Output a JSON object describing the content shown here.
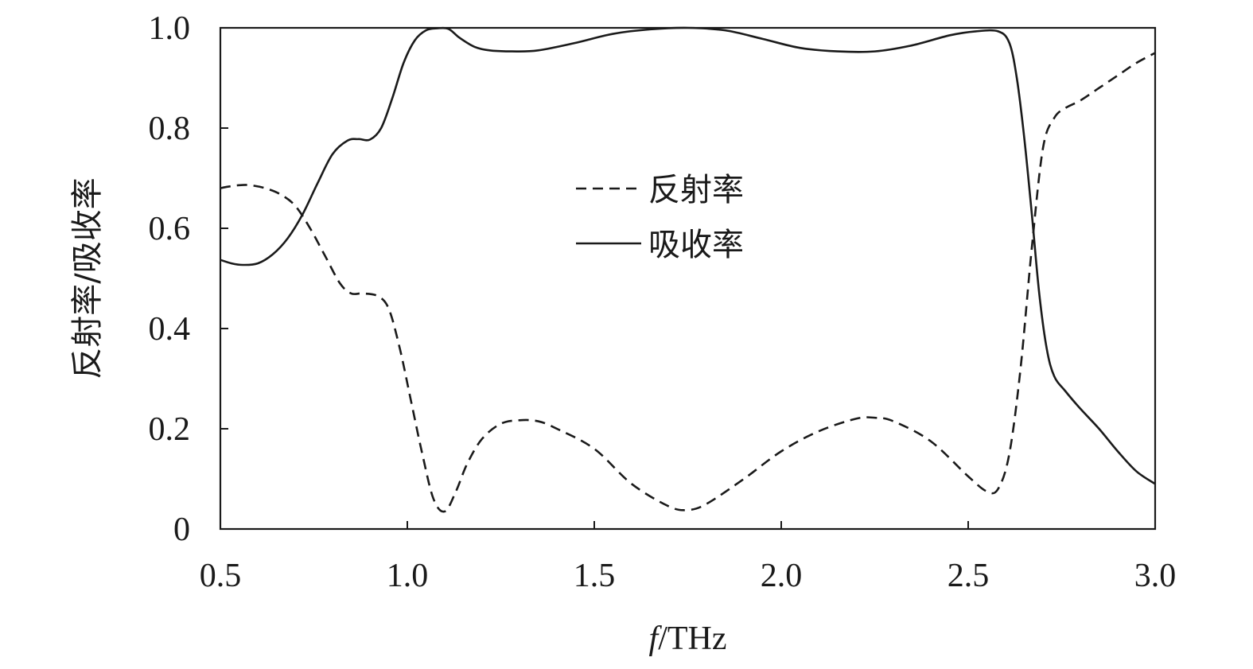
{
  "chart_data": {
    "type": "line",
    "title": "",
    "xlabel": "f/THz",
    "xlabel_italic_part": "f",
    "xlabel_rest": "/THz",
    "ylabel": "反射率/吸收率",
    "xlim": [
      0.5,
      3.0
    ],
    "ylim": [
      0,
      1.0
    ],
    "x_ticks": [
      0.5,
      1.0,
      1.5,
      2.0,
      2.5,
      3.0
    ],
    "x_tick_labels": [
      "0.5",
      "1.0",
      "1.5",
      "2.0",
      "2.5",
      "3.0"
    ],
    "y_ticks": [
      0,
      0.2,
      0.4,
      0.6,
      0.8,
      1.0
    ],
    "y_tick_labels": [
      "0",
      "0.2",
      "0.4",
      "0.6",
      "0.8",
      "1.0"
    ],
    "grid": false,
    "legend_position": "center",
    "series": [
      {
        "name": "反射率",
        "style": "dashed",
        "color": "#1a1a1a",
        "x": [
          0.5,
          0.52,
          0.55,
          0.58,
          0.62,
          0.66,
          0.7,
          0.74,
          0.78,
          0.82,
          0.85,
          0.88,
          0.92,
          0.95,
          0.98,
          1.01,
          1.04,
          1.07,
          1.1,
          1.13,
          1.16,
          1.2,
          1.25,
          1.3,
          1.35,
          1.4,
          1.5,
          1.6,
          1.7,
          1.75,
          1.8,
          1.9,
          2.0,
          2.1,
          2.2,
          2.25,
          2.3,
          2.4,
          2.5,
          2.55,
          2.58,
          2.61,
          2.64,
          2.67,
          2.7,
          2.73,
          2.76,
          2.8,
          2.85,
          2.9,
          2.95,
          3.0
        ],
        "y": [
          0.68,
          0.683,
          0.686,
          0.686,
          0.68,
          0.668,
          0.645,
          0.6,
          0.545,
          0.49,
          0.47,
          0.47,
          0.465,
          0.44,
          0.36,
          0.255,
          0.15,
          0.06,
          0.035,
          0.075,
          0.13,
          0.18,
          0.21,
          0.217,
          0.215,
          0.2,
          0.16,
          0.09,
          0.045,
          0.038,
          0.05,
          0.1,
          0.155,
          0.195,
          0.22,
          0.222,
          0.215,
          0.175,
          0.105,
          0.075,
          0.08,
          0.15,
          0.32,
          0.56,
          0.76,
          0.82,
          0.84,
          0.855,
          0.88,
          0.905,
          0.93,
          0.95
        ]
      },
      {
        "name": "吸收率",
        "style": "solid",
        "color": "#1a1a1a",
        "x": [
          0.5,
          0.53,
          0.56,
          0.6,
          0.64,
          0.68,
          0.72,
          0.76,
          0.8,
          0.84,
          0.87,
          0.9,
          0.93,
          0.96,
          0.99,
          1.02,
          1.05,
          1.08,
          1.11,
          1.14,
          1.18,
          1.22,
          1.28,
          1.35,
          1.45,
          1.55,
          1.65,
          1.75,
          1.85,
          1.95,
          2.05,
          2.15,
          2.25,
          2.35,
          2.45,
          2.52,
          2.58,
          2.61,
          2.63,
          2.65,
          2.67,
          2.69,
          2.71,
          2.73,
          2.76,
          2.8,
          2.85,
          2.9,
          2.95,
          3.0
        ],
        "y": [
          0.537,
          0.53,
          0.527,
          0.53,
          0.548,
          0.58,
          0.628,
          0.69,
          0.748,
          0.775,
          0.778,
          0.777,
          0.8,
          0.86,
          0.93,
          0.975,
          0.995,
          0.999,
          0.998,
          0.98,
          0.962,
          0.955,
          0.953,
          0.955,
          0.97,
          0.988,
          0.997,
          1.0,
          0.995,
          0.978,
          0.96,
          0.953,
          0.953,
          0.965,
          0.985,
          0.993,
          0.993,
          0.97,
          0.9,
          0.78,
          0.63,
          0.47,
          0.36,
          0.305,
          0.275,
          0.24,
          0.2,
          0.155,
          0.115,
          0.09
        ]
      }
    ]
  }
}
